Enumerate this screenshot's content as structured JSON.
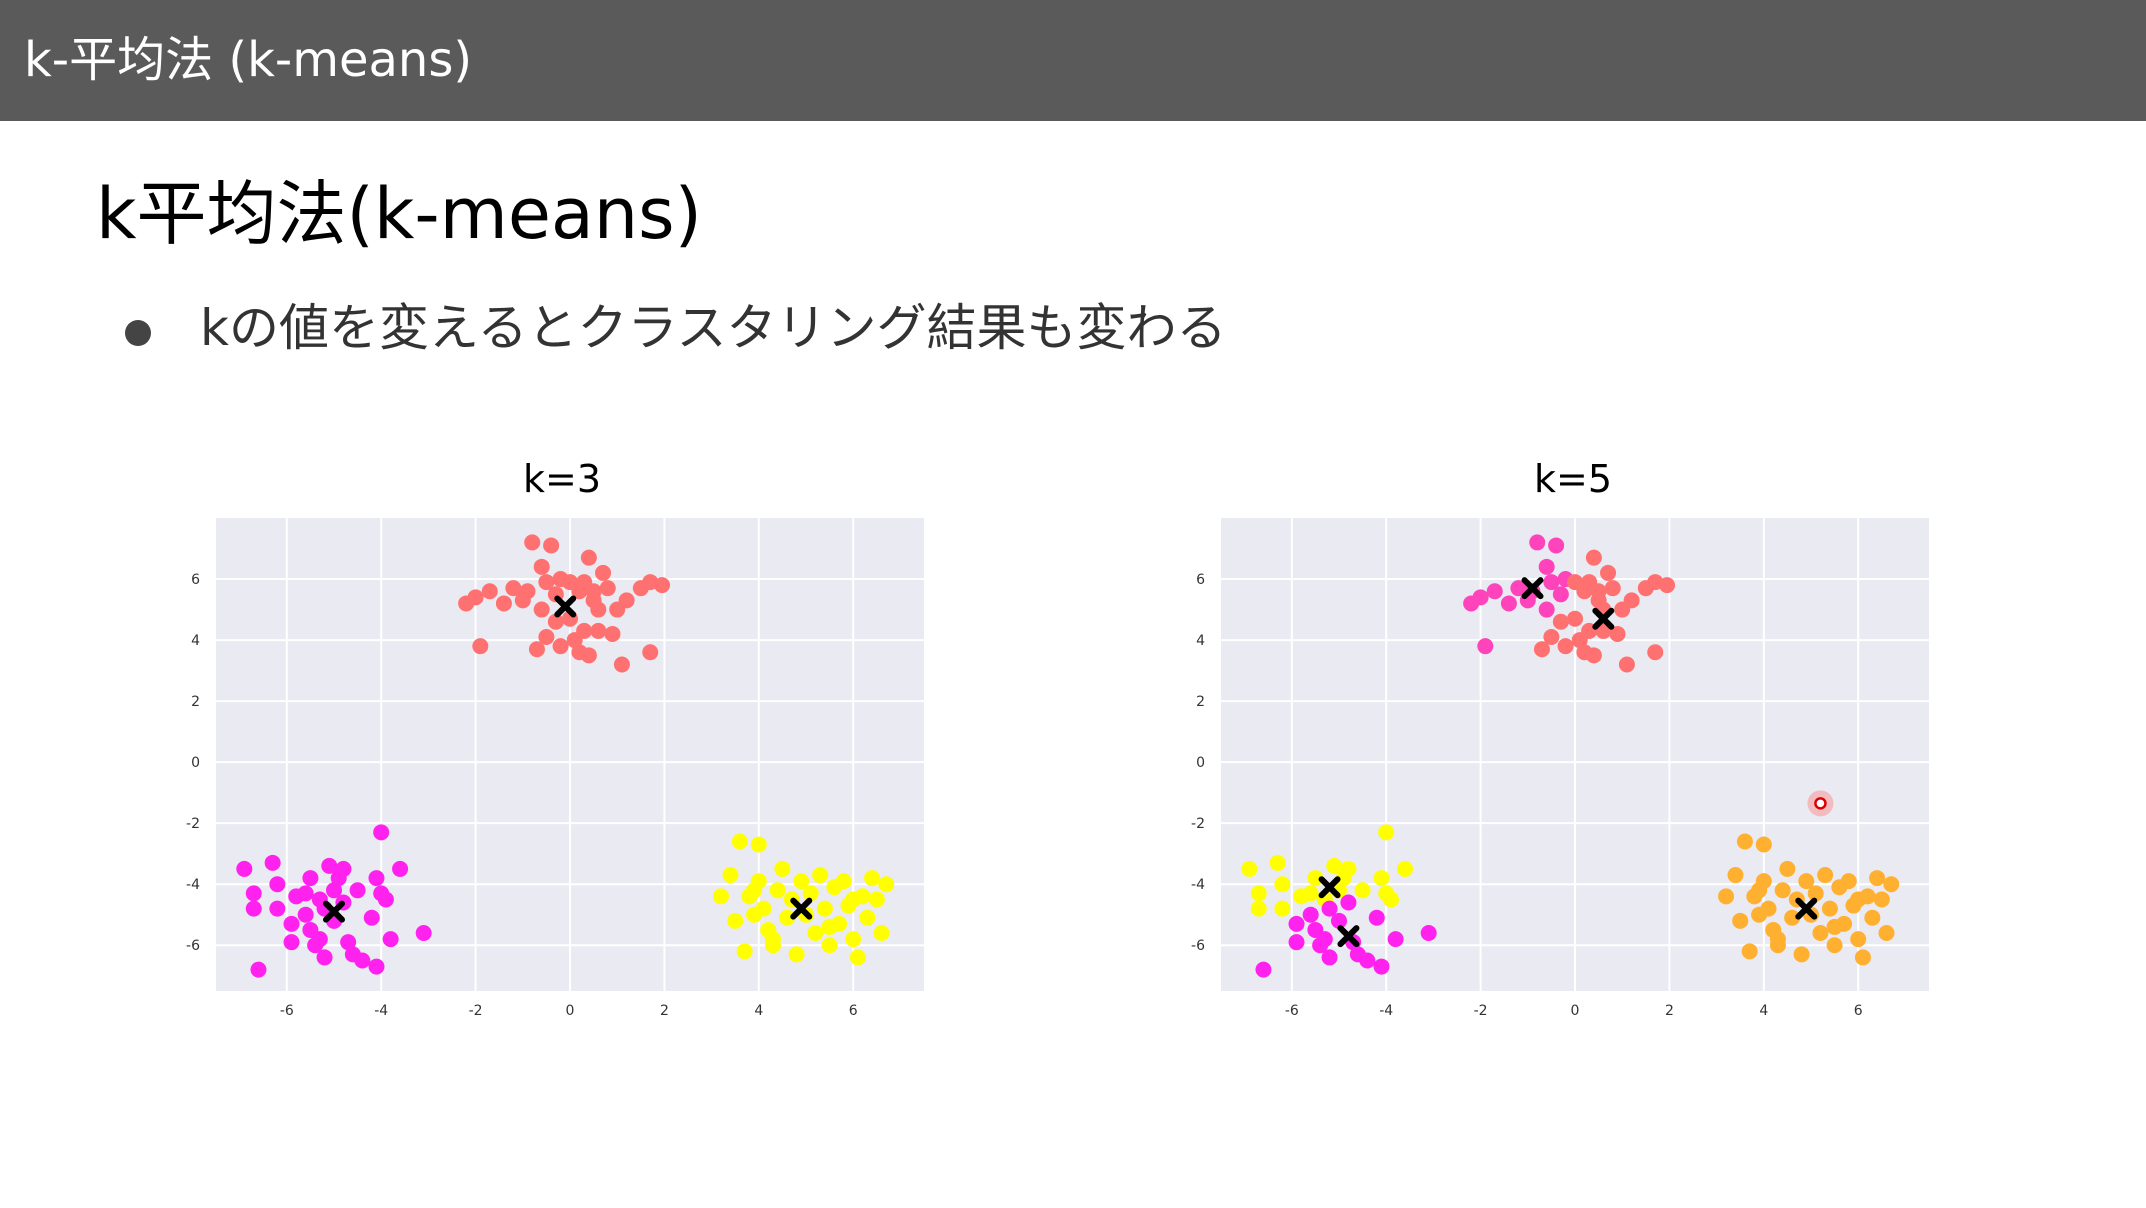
{
  "header": {
    "title": "k-平均法 (k-means)"
  },
  "slide": {
    "title": "k平均法(k-means)",
    "bullet": "kの値を変えるとクラスタリング結果も変わる"
  },
  "colors": {
    "header_bg": "#5a5a5a",
    "plot_bg": "#eaeaf2",
    "grid": "#ffffff",
    "salmon": "#ff7070",
    "magenta": "#ff22ee",
    "yellow": "#ffff00",
    "pink": "#ff44bb",
    "orange": "#ffb030",
    "centroid": "#000000"
  },
  "chart_data": [
    {
      "type": "scatter",
      "title": "k=3",
      "xlim": [
        -7.5,
        7.5
      ],
      "ylim": [
        -7.5,
        8
      ],
      "xticks": [
        -6,
        -4,
        -2,
        0,
        2,
        4,
        6
      ],
      "yticks": [
        6,
        4,
        2,
        0,
        -2,
        -4,
        -6
      ],
      "grid": true,
      "series": [
        {
          "color": "#ff7070",
          "points": [
            [
              -2.2,
              5.2
            ],
            [
              -2.0,
              5.4
            ],
            [
              -1.7,
              5.6
            ],
            [
              -1.4,
              5.2
            ],
            [
              -1.2,
              5.7
            ],
            [
              -1.0,
              5.3
            ],
            [
              -0.9,
              5.6
            ],
            [
              -0.8,
              7.2
            ],
            [
              -0.6,
              6.4
            ],
            [
              -0.5,
              5.9
            ],
            [
              -0.4,
              7.1
            ],
            [
              -0.3,
              5.5
            ],
            [
              -0.2,
              6.0
            ],
            [
              0.0,
              5.9
            ],
            [
              0.2,
              5.6
            ],
            [
              0.3,
              5.9
            ],
            [
              0.4,
              6.7
            ],
            [
              0.5,
              5.3
            ],
            [
              0.6,
              5.0
            ],
            [
              0.7,
              6.2
            ],
            [
              0.8,
              5.7
            ],
            [
              1.0,
              5.0
            ],
            [
              1.2,
              5.3
            ],
            [
              1.5,
              5.7
            ],
            [
              1.7,
              5.9
            ],
            [
              1.95,
              5.8
            ],
            [
              -0.3,
              4.6
            ],
            [
              0.0,
              4.7
            ],
            [
              0.3,
              4.3
            ],
            [
              0.6,
              4.3
            ],
            [
              0.9,
              4.2
            ],
            [
              -0.5,
              4.1
            ],
            [
              -0.2,
              3.8
            ],
            [
              0.2,
              3.6
            ],
            [
              0.4,
              3.5
            ],
            [
              1.1,
              3.2
            ],
            [
              1.7,
              3.6
            ],
            [
              -1.9,
              3.8
            ],
            [
              -0.7,
              3.7
            ],
            [
              0.1,
              4.0
            ],
            [
              -0.6,
              5.0
            ],
            [
              0.5,
              5.6
            ]
          ]
        },
        {
          "color": "#ff22ee",
          "points": [
            [
              -6.9,
              -3.5
            ],
            [
              -6.7,
              -4.3
            ],
            [
              -6.7,
              -4.8
            ],
            [
              -6.6,
              -6.8
            ],
            [
              -6.3,
              -3.3
            ],
            [
              -6.2,
              -4.0
            ],
            [
              -6.2,
              -4.8
            ],
            [
              -5.9,
              -5.3
            ],
            [
              -5.9,
              -5.9
            ],
            [
              -5.8,
              -4.4
            ],
            [
              -5.6,
              -5.0
            ],
            [
              -5.5,
              -3.8
            ],
            [
              -5.5,
              -5.5
            ],
            [
              -5.4,
              -6.0
            ],
            [
              -5.3,
              -4.5
            ],
            [
              -5.2,
              -4.8
            ],
            [
              -5.1,
              -3.4
            ],
            [
              -5.0,
              -4.2
            ],
            [
              -5.0,
              -5.2
            ],
            [
              -4.9,
              -3.8
            ],
            [
              -4.8,
              -4.6
            ],
            [
              -4.7,
              -5.9
            ],
            [
              -4.6,
              -6.3
            ],
            [
              -4.5,
              -4.2
            ],
            [
              -4.4,
              -6.5
            ],
            [
              -4.2,
              -5.1
            ],
            [
              -4.1,
              -3.8
            ],
            [
              -4.1,
              -6.7
            ],
            [
              -4.0,
              -2.3
            ],
            [
              -4.0,
              -4.3
            ],
            [
              -3.9,
              -4.5
            ],
            [
              -3.8,
              -5.8
            ],
            [
              -3.6,
              -3.5
            ],
            [
              -3.1,
              -5.6
            ],
            [
              -5.2,
              -6.4
            ],
            [
              -5.6,
              -4.3
            ],
            [
              -4.8,
              -3.5
            ],
            [
              -5.3,
              -5.8
            ]
          ]
        },
        {
          "color": "#ffff00",
          "points": [
            [
              3.2,
              -4.4
            ],
            [
              3.4,
              -3.7
            ],
            [
              3.5,
              -5.2
            ],
            [
              3.6,
              -2.6
            ],
            [
              3.7,
              -6.2
            ],
            [
              3.8,
              -4.4
            ],
            [
              3.9,
              -5.0
            ],
            [
              4.0,
              -3.9
            ],
            [
              4.0,
              -2.7
            ],
            [
              4.1,
              -4.8
            ],
            [
              4.2,
              -5.5
            ],
            [
              4.3,
              -6.0
            ],
            [
              4.4,
              -4.2
            ],
            [
              4.5,
              -3.5
            ],
            [
              4.6,
              -5.1
            ],
            [
              4.7,
              -4.5
            ],
            [
              4.8,
              -6.3
            ],
            [
              4.9,
              -3.9
            ],
            [
              5.0,
              -5.0
            ],
            [
              5.1,
              -4.3
            ],
            [
              5.2,
              -5.6
            ],
            [
              5.3,
              -3.7
            ],
            [
              5.4,
              -4.8
            ],
            [
              5.5,
              -6.0
            ],
            [
              5.6,
              -4.1
            ],
            [
              5.7,
              -5.3
            ],
            [
              5.8,
              -3.9
            ],
            [
              5.9,
              -4.7
            ],
            [
              6.0,
              -5.8
            ],
            [
              6.1,
              -6.4
            ],
            [
              6.2,
              -4.4
            ],
            [
              6.3,
              -5.1
            ],
            [
              6.4,
              -3.8
            ],
            [
              6.5,
              -4.5
            ],
            [
              6.6,
              -5.6
            ],
            [
              6.7,
              -4.0
            ],
            [
              3.9,
              -4.2
            ],
            [
              4.3,
              -5.8
            ],
            [
              5.5,
              -5.4
            ],
            [
              6.0,
              -4.5
            ]
          ]
        }
      ],
      "centroids": [
        [
          -0.1,
          5.1
        ],
        [
          -5.0,
          -4.9
        ],
        [
          4.9,
          -4.8
        ]
      ]
    },
    {
      "type": "scatter",
      "title": "k=5",
      "xlim": [
        -7.5,
        7.5
      ],
      "ylim": [
        -7.5,
        8
      ],
      "xticks": [
        -6,
        -4,
        -2,
        0,
        2,
        4,
        6
      ],
      "yticks": [
        6,
        4,
        2,
        0,
        -2,
        -4,
        -6
      ],
      "grid": true,
      "series": [
        {
          "color": "#ff44bb",
          "points": [
            [
              -2.2,
              5.2
            ],
            [
              -2.0,
              5.4
            ],
            [
              -1.7,
              5.6
            ],
            [
              -1.4,
              5.2
            ],
            [
              -1.2,
              5.7
            ],
            [
              -1.0,
              5.3
            ],
            [
              -0.9,
              5.6
            ],
            [
              -0.8,
              7.2
            ],
            [
              -0.6,
              6.4
            ],
            [
              -0.5,
              5.9
            ],
            [
              -0.4,
              7.1
            ],
            [
              -0.3,
              5.5
            ],
            [
              -0.2,
              6.0
            ],
            [
              -1.9,
              3.8
            ],
            [
              -0.6,
              5.0
            ]
          ]
        },
        {
          "color": "#ff7070",
          "points": [
            [
              0.0,
              5.9
            ],
            [
              0.2,
              5.6
            ],
            [
              0.3,
              5.9
            ],
            [
              0.4,
              6.7
            ],
            [
              0.5,
              5.3
            ],
            [
              0.6,
              5.0
            ],
            [
              0.7,
              6.2
            ],
            [
              0.8,
              5.7
            ],
            [
              1.0,
              5.0
            ],
            [
              1.2,
              5.3
            ],
            [
              1.5,
              5.7
            ],
            [
              1.7,
              5.9
            ],
            [
              1.95,
              5.8
            ],
            [
              -0.3,
              4.6
            ],
            [
              0.0,
              4.7
            ],
            [
              0.3,
              4.3
            ],
            [
              0.6,
              4.3
            ],
            [
              0.9,
              4.2
            ],
            [
              -0.5,
              4.1
            ],
            [
              -0.2,
              3.8
            ],
            [
              0.2,
              3.6
            ],
            [
              0.4,
              3.5
            ],
            [
              1.1,
              3.2
            ],
            [
              1.7,
              3.6
            ],
            [
              -0.7,
              3.7
            ],
            [
              0.1,
              4.0
            ],
            [
              0.5,
              5.6
            ]
          ]
        },
        {
          "color": "#ffff00",
          "points": [
            [
              -6.9,
              -3.5
            ],
            [
              -6.7,
              -4.3
            ],
            [
              -6.7,
              -4.8
            ],
            [
              -6.3,
              -3.3
            ],
            [
              -6.2,
              -4.0
            ],
            [
              -6.2,
              -4.8
            ],
            [
              -5.8,
              -4.4
            ],
            [
              -5.5,
              -3.8
            ],
            [
              -5.3,
              -4.5
            ],
            [
              -5.1,
              -3.4
            ],
            [
              -5.0,
              -4.2
            ],
            [
              -4.9,
              -3.8
            ],
            [
              -4.5,
              -4.2
            ],
            [
              -4.1,
              -3.8
            ],
            [
              -4.0,
              -2.3
            ],
            [
              -4.0,
              -4.3
            ],
            [
              -3.9,
              -4.5
            ],
            [
              -3.6,
              -3.5
            ],
            [
              -5.6,
              -4.3
            ],
            [
              -4.8,
              -3.5
            ]
          ]
        },
        {
          "color": "#ff22ee",
          "points": [
            [
              -6.6,
              -6.8
            ],
            [
              -5.9,
              -5.3
            ],
            [
              -5.9,
              -5.9
            ],
            [
              -5.6,
              -5.0
            ],
            [
              -5.5,
              -5.5
            ],
            [
              -5.4,
              -6.0
            ],
            [
              -5.2,
              -4.8
            ],
            [
              -5.0,
              -5.2
            ],
            [
              -4.8,
              -4.6
            ],
            [
              -4.7,
              -5.9
            ],
            [
              -4.6,
              -6.3
            ],
            [
              -4.4,
              -6.5
            ],
            [
              -4.2,
              -5.1
            ],
            [
              -4.1,
              -6.7
            ],
            [
              -3.8,
              -5.8
            ],
            [
              -3.1,
              -5.6
            ],
            [
              -5.2,
              -6.4
            ],
            [
              -5.3,
              -5.8
            ]
          ]
        },
        {
          "color": "#ffb030",
          "points": [
            [
              3.2,
              -4.4
            ],
            [
              3.4,
              -3.7
            ],
            [
              3.5,
              -5.2
            ],
            [
              3.6,
              -2.6
            ],
            [
              3.7,
              -6.2
            ],
            [
              3.8,
              -4.4
            ],
            [
              3.9,
              -5.0
            ],
            [
              4.0,
              -3.9
            ],
            [
              4.0,
              -2.7
            ],
            [
              4.1,
              -4.8
            ],
            [
              4.2,
              -5.5
            ],
            [
              4.3,
              -6.0
            ],
            [
              4.4,
              -4.2
            ],
            [
              4.5,
              -3.5
            ],
            [
              4.6,
              -5.1
            ],
            [
              4.7,
              -4.5
            ],
            [
              4.8,
              -6.3
            ],
            [
              4.9,
              -3.9
            ],
            [
              5.0,
              -5.0
            ],
            [
              5.1,
              -4.3
            ],
            [
              5.2,
              -5.6
            ],
            [
              5.3,
              -3.7
            ],
            [
              5.4,
              -4.8
            ],
            [
              5.5,
              -6.0
            ],
            [
              5.6,
              -4.1
            ],
            [
              5.7,
              -5.3
            ],
            [
              5.8,
              -3.9
            ],
            [
              5.9,
              -4.7
            ],
            [
              6.0,
              -5.8
            ],
            [
              6.1,
              -6.4
            ],
            [
              6.2,
              -4.4
            ],
            [
              6.3,
              -5.1
            ],
            [
              6.4,
              -3.8
            ],
            [
              6.5,
              -4.5
            ],
            [
              6.6,
              -5.6
            ],
            [
              6.7,
              -4.0
            ],
            [
              3.9,
              -4.2
            ],
            [
              4.3,
              -5.8
            ],
            [
              5.5,
              -5.4
            ],
            [
              6.0,
              -4.5
            ]
          ]
        }
      ],
      "centroids": [
        [
          -0.9,
          5.7
        ],
        [
          0.6,
          4.7
        ],
        [
          -5.2,
          -4.1
        ],
        [
          -4.8,
          -5.7
        ],
        [
          4.9,
          -4.8
        ]
      ],
      "cursor": [
        5.2,
        -1.35
      ]
    }
  ]
}
